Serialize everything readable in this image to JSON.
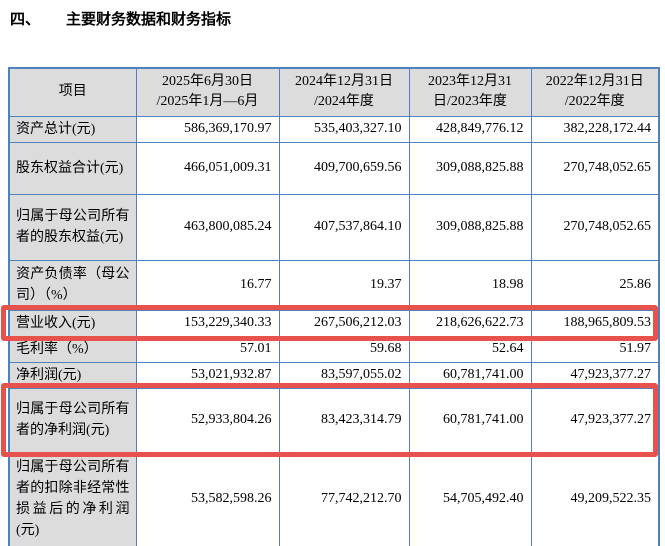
{
  "heading": {
    "number": "四、",
    "title": "主要财务数据和财务指标"
  },
  "table": {
    "columns": [
      {
        "line1": "项目",
        "line2": ""
      },
      {
        "line1": "2025年6月30日",
        "line2": "/2025年1月—6月"
      },
      {
        "line1": "2024年12月31日",
        "line2": "/2024年度"
      },
      {
        "line1": "2023年12月31",
        "line2": "日/2023年度"
      },
      {
        "line1": "2022年12月31日",
        "line2": "/2022年度"
      }
    ],
    "rows": [
      {
        "label": "资产总计(元)",
        "values": [
          "586,369,170.97",
          "535,403,327.10",
          "428,849,776.12",
          "382,228,172.44"
        ],
        "highlight": false
      },
      {
        "label": "股东权益合计(元)",
        "values": [
          "466,051,009.31",
          "409,700,659.56",
          "309,088,825.88",
          "270,748,052.65"
        ],
        "highlight": false
      },
      {
        "label": "归属于母公司所有者的股东权益(元)",
        "values": [
          "463,800,085.24",
          "407,537,864.10",
          "309,088,825.88",
          "270,748,052.65"
        ],
        "highlight": false
      },
      {
        "label": "资产负债率（母公司）（%）",
        "values": [
          "16.77",
          "19.37",
          "18.98",
          "25.86"
        ],
        "highlight": false
      },
      {
        "label": "营业收入(元)",
        "values": [
          "153,229,340.33",
          "267,506,212.03",
          "218,626,622.73",
          "188,965,809.53"
        ],
        "highlight": true
      },
      {
        "label": "毛利率（%）",
        "values": [
          "57.01",
          "59.68",
          "52.64",
          "51.97"
        ],
        "highlight": false
      },
      {
        "label": "净利润(元)",
        "values": [
          "53,021,932.87",
          "83,597,055.02",
          "60,781,741.00",
          "47,923,377.27"
        ],
        "highlight": false
      },
      {
        "label": "归属于母公司所有者的净利润(元)",
        "values": [
          "52,933,804.26",
          "83,423,314.79",
          "60,781,741.00",
          "47,923,377.27"
        ],
        "highlight": true
      },
      {
        "label": "归属于母公司所有者的扣除非经常性损益后的净利润(元)",
        "values": [
          "53,582,598.26",
          "77,742,212.70",
          "54,705,492.40",
          "49,209,522.35"
        ],
        "highlight": false
      }
    ]
  },
  "colors": {
    "table_border": "#4f81bd",
    "header_bg": "#dcdcdc",
    "highlight_red": "#e8524c"
  }
}
